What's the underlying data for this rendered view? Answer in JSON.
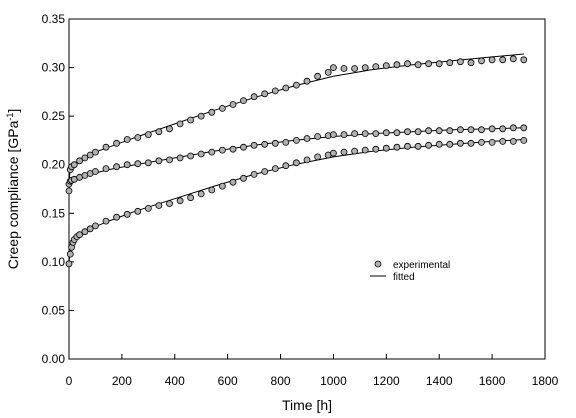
{
  "chart_data": {
    "type": "scatter",
    "xlabel": "Time [h]",
    "ylabel_main": "Creep compliance [GPa",
    "ylabel_sup": "-1",
    "ylabel_end": "]",
    "xlim": [
      0,
      1800
    ],
    "ylim": [
      0,
      0.35
    ],
    "xticks": [
      0,
      200,
      400,
      600,
      800,
      1000,
      1200,
      1400,
      1600,
      1800
    ],
    "yticks": [
      "0.00",
      "0.05",
      "0.10",
      "0.15",
      "0.20",
      "0.25",
      "0.30",
      "0.35"
    ],
    "grid": false,
    "legend_position": "lower-right",
    "legend": [
      {
        "label": "experimental",
        "kind": "marker"
      },
      {
        "label": "fitted",
        "kind": "line"
      }
    ],
    "series": [
      {
        "x": [
          0,
          5,
          10,
          20,
          40,
          60,
          80,
          100,
          140,
          180,
          220,
          260,
          300,
          340,
          380,
          420,
          460,
          500,
          540,
          580,
          620,
          660,
          700,
          740,
          780,
          820,
          860,
          900,
          940,
          980,
          1000,
          1040,
          1080,
          1120,
          1160,
          1200,
          1240,
          1280,
          1320,
          1360,
          1400,
          1440,
          1480,
          1520,
          1560,
          1600,
          1640,
          1680,
          1720
        ],
        "y": [
          0.173,
          0.195,
          0.198,
          0.2,
          0.204,
          0.207,
          0.21,
          0.213,
          0.218,
          0.222,
          0.226,
          0.228,
          0.231,
          0.234,
          0.237,
          0.242,
          0.246,
          0.25,
          0.254,
          0.258,
          0.262,
          0.266,
          0.27,
          0.273,
          0.276,
          0.279,
          0.282,
          0.286,
          0.291,
          0.295,
          0.3,
          0.299,
          0.299,
          0.3,
          0.301,
          0.302,
          0.303,
          0.304,
          0.303,
          0.304,
          0.304,
          0.305,
          0.306,
          0.305,
          0.307,
          0.308,
          0.308,
          0.309,
          0.308
        ],
        "fit_x": [
          0,
          2,
          5,
          10,
          20,
          40,
          80,
          150,
          250,
          400,
          550,
          700,
          850,
          1000,
          1150,
          1300,
          1450,
          1600,
          1720
        ],
        "fit_y": [
          0.175,
          0.188,
          0.195,
          0.198,
          0.201,
          0.205,
          0.211,
          0.218,
          0.228,
          0.242,
          0.256,
          0.269,
          0.281,
          0.291,
          0.298,
          0.303,
          0.307,
          0.311,
          0.314
        ]
      },
      {
        "x": [
          0,
          5,
          10,
          20,
          40,
          60,
          80,
          100,
          140,
          180,
          220,
          260,
          300,
          340,
          380,
          420,
          460,
          500,
          540,
          580,
          620,
          660,
          700,
          740,
          780,
          820,
          860,
          900,
          940,
          980,
          1000,
          1040,
          1080,
          1120,
          1160,
          1200,
          1240,
          1280,
          1320,
          1360,
          1400,
          1440,
          1480,
          1520,
          1560,
          1600,
          1640,
          1680,
          1720
        ],
        "y": [
          0.18,
          0.183,
          0.184,
          0.185,
          0.187,
          0.189,
          0.191,
          0.193,
          0.196,
          0.198,
          0.2,
          0.201,
          0.202,
          0.204,
          0.205,
          0.207,
          0.209,
          0.211,
          0.213,
          0.215,
          0.216,
          0.218,
          0.22,
          0.221,
          0.222,
          0.223,
          0.225,
          0.227,
          0.229,
          0.23,
          0.231,
          0.231,
          0.232,
          0.232,
          0.232,
          0.233,
          0.233,
          0.234,
          0.234,
          0.235,
          0.235,
          0.235,
          0.236,
          0.236,
          0.236,
          0.237,
          0.237,
          0.238,
          0.238
        ],
        "fit_x": [
          0,
          2,
          5,
          10,
          20,
          40,
          80,
          150,
          250,
          400,
          550,
          700,
          850,
          1000,
          1150,
          1300,
          1450,
          1600,
          1720
        ],
        "fit_y": [
          0.175,
          0.18,
          0.182,
          0.183,
          0.185,
          0.187,
          0.19,
          0.195,
          0.2,
          0.207,
          0.214,
          0.22,
          0.225,
          0.229,
          0.232,
          0.234,
          0.236,
          0.237,
          0.238
        ]
      },
      {
        "x": [
          0,
          5,
          10,
          15,
          20,
          30,
          40,
          60,
          80,
          100,
          140,
          180,
          220,
          260,
          300,
          340,
          380,
          420,
          460,
          500,
          540,
          580,
          620,
          660,
          700,
          740,
          780,
          820,
          860,
          900,
          940,
          980,
          1000,
          1040,
          1080,
          1120,
          1160,
          1200,
          1240,
          1280,
          1320,
          1360,
          1400,
          1440,
          1480,
          1520,
          1560,
          1600,
          1640,
          1680,
          1720
        ],
        "y": [
          0.098,
          0.108,
          0.115,
          0.12,
          0.123,
          0.126,
          0.128,
          0.131,
          0.134,
          0.137,
          0.142,
          0.146,
          0.149,
          0.152,
          0.155,
          0.158,
          0.16,
          0.163,
          0.166,
          0.17,
          0.174,
          0.178,
          0.182,
          0.186,
          0.19,
          0.193,
          0.196,
          0.199,
          0.202,
          0.205,
          0.208,
          0.21,
          0.212,
          0.213,
          0.214,
          0.215,
          0.216,
          0.217,
          0.218,
          0.219,
          0.219,
          0.22,
          0.221,
          0.221,
          0.222,
          0.222,
          0.223,
          0.223,
          0.224,
          0.224,
          0.225
        ],
        "fit_x": [
          0,
          2,
          5,
          10,
          20,
          40,
          80,
          150,
          250,
          400,
          550,
          700,
          850,
          1000,
          1150,
          1300,
          1450,
          1600,
          1720
        ],
        "fit_y": [
          0.098,
          0.105,
          0.112,
          0.118,
          0.123,
          0.128,
          0.134,
          0.142,
          0.152,
          0.165,
          0.178,
          0.19,
          0.2,
          0.208,
          0.214,
          0.218,
          0.221,
          0.224,
          0.226
        ]
      }
    ]
  }
}
